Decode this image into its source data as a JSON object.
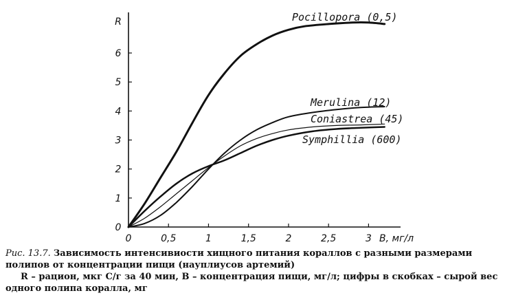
{
  "chart_data": {
    "type": "line",
    "xlabel": "B, мг/л",
    "ylabel": "R",
    "xlim": [
      0,
      3.4
    ],
    "ylim": [
      0,
      7.4
    ],
    "x_ticks": [
      "0",
      "0,5",
      "1",
      "1,5",
      "2",
      "2,5",
      "3"
    ],
    "x_tick_values": [
      0,
      0.5,
      1,
      1.5,
      2,
      2.5,
      3
    ],
    "y_ticks": [
      "0",
      "1",
      "2",
      "3",
      "4",
      "5",
      "6"
    ],
    "y_tick_values": [
      0,
      1,
      2,
      3,
      4,
      5,
      6
    ],
    "grid": false,
    "series": [
      {
        "name": "Pocillopora (0,5)",
        "stroke": 3,
        "x": [
          0,
          0.2,
          0.4,
          0.6,
          0.8,
          1.0,
          1.2,
          1.4,
          1.6,
          1.8,
          2.0,
          2.2,
          2.5,
          2.8,
          3.0,
          3.2
        ],
        "y": [
          0,
          0.8,
          1.7,
          2.6,
          3.6,
          4.55,
          5.3,
          5.9,
          6.3,
          6.6,
          6.8,
          6.92,
          7.0,
          7.05,
          7.05,
          7.0
        ]
      },
      {
        "name": "Merulina (12)",
        "stroke": 2,
        "x": [
          0,
          0.2,
          0.4,
          0.6,
          0.8,
          1.0,
          1.2,
          1.4,
          1.6,
          1.8,
          2.0,
          2.3,
          2.6,
          2.9,
          3.2
        ],
        "y": [
          0,
          0.12,
          0.4,
          0.85,
          1.4,
          2.0,
          2.55,
          3.0,
          3.35,
          3.6,
          3.8,
          3.95,
          4.05,
          4.12,
          4.15
        ]
      },
      {
        "name": "Coniastrea (45)",
        "stroke": 1.2,
        "x": [
          0,
          0.2,
          0.4,
          0.6,
          0.8,
          1.0,
          1.2,
          1.4,
          1.6,
          1.8,
          2.0,
          2.3,
          2.6,
          2.9,
          3.2
        ],
        "y": [
          0,
          0.3,
          0.7,
          1.15,
          1.6,
          2.05,
          2.45,
          2.8,
          3.05,
          3.22,
          3.35,
          3.45,
          3.5,
          3.52,
          3.55
        ]
      },
      {
        "name": "Symphillia (600)",
        "stroke": 2.5,
        "x": [
          0,
          0.2,
          0.4,
          0.6,
          0.8,
          1.0,
          1.2,
          1.4,
          1.6,
          1.8,
          2.0,
          2.3,
          2.6,
          2.9,
          3.2
        ],
        "y": [
          0,
          0.55,
          1.05,
          1.5,
          1.85,
          2.1,
          2.3,
          2.55,
          2.8,
          3.0,
          3.15,
          3.3,
          3.38,
          3.42,
          3.45
        ]
      }
    ]
  },
  "caption": {
    "fig_no": "Рис. 13.7.",
    "title": "Зависимость интенсивиости хищного питания кораллов с разными размерами полипов от концентрации пищи (науплиусов артемий)",
    "note_line1": "R – рацион, мкг С/г за 40 мин, B – концентрация пищи, мг/л; цифры в скобках – сырой вес",
    "note_line2": "одного полипа коралла, мг"
  }
}
